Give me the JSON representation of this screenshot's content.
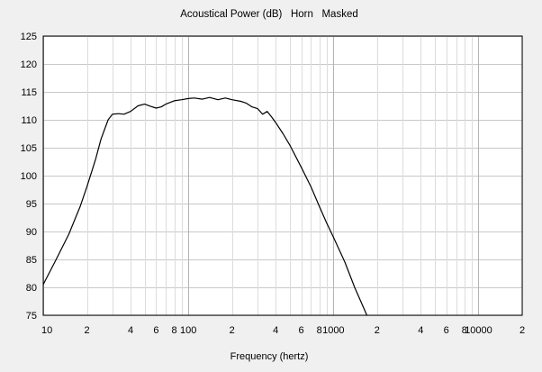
{
  "chart_data": {
    "type": "line",
    "title": "Acoustical Power (dB)   Horn   Masked",
    "xlabel": "Frequency (hertz)",
    "ylabel": "",
    "x_scale": "log",
    "xlim": [
      10,
      20000
    ],
    "ylim": [
      75,
      125
    ],
    "grid": true,
    "y_ticks": [
      125,
      120,
      115,
      110,
      105,
      100,
      95,
      90,
      85,
      80,
      75
    ],
    "x_tick_labels": [
      {
        "x": 10,
        "label": "10"
      },
      {
        "x": 20,
        "label": "2"
      },
      {
        "x": 40,
        "label": "4"
      },
      {
        "x": 60,
        "label": "6"
      },
      {
        "x": 80,
        "label": "8"
      },
      {
        "x": 100,
        "label": "100"
      },
      {
        "x": 200,
        "label": "2"
      },
      {
        "x": 400,
        "label": "4"
      },
      {
        "x": 600,
        "label": "6"
      },
      {
        "x": 800,
        "label": "8"
      },
      {
        "x": 1000,
        "label": "1000"
      },
      {
        "x": 2000,
        "label": "2"
      },
      {
        "x": 4000,
        "label": "4"
      },
      {
        "x": 6000,
        "label": "6"
      },
      {
        "x": 8000,
        "label": "8"
      },
      {
        "x": 10000,
        "label": "10000"
      },
      {
        "x": 20000,
        "label": "2"
      }
    ],
    "series": [
      {
        "color": "#000000",
        "points": [
          [
            10,
            80.5
          ],
          [
            12,
            84.5
          ],
          [
            15,
            89.5
          ],
          [
            18,
            94.5
          ],
          [
            20,
            98
          ],
          [
            23,
            103
          ],
          [
            25,
            106.5
          ],
          [
            28,
            110
          ],
          [
            30,
            111
          ],
          [
            33,
            111.1
          ],
          [
            36,
            111
          ],
          [
            40,
            111.5
          ],
          [
            45,
            112.5
          ],
          [
            50,
            112.8
          ],
          [
            55,
            112.4
          ],
          [
            60,
            112.1
          ],
          [
            65,
            112.3
          ],
          [
            70,
            112.8
          ],
          [
            80,
            113.4
          ],
          [
            90,
            113.6
          ],
          [
            100,
            113.8
          ],
          [
            110,
            113.9
          ],
          [
            125,
            113.7
          ],
          [
            140,
            114
          ],
          [
            160,
            113.6
          ],
          [
            180,
            113.9
          ],
          [
            200,
            113.6
          ],
          [
            230,
            113.3
          ],
          [
            250,
            113
          ],
          [
            275,
            112.3
          ],
          [
            300,
            112
          ],
          [
            325,
            111
          ],
          [
            350,
            111.5
          ],
          [
            375,
            110.5
          ],
          [
            400,
            109.5
          ],
          [
            450,
            107.5
          ],
          [
            500,
            105.5
          ],
          [
            600,
            101.5
          ],
          [
            700,
            98
          ],
          [
            800,
            94.5
          ],
          [
            900,
            91.5
          ],
          [
            1000,
            89
          ],
          [
            1200,
            84.5
          ],
          [
            1400,
            80
          ],
          [
            1700,
            75
          ]
        ]
      }
    ]
  }
}
